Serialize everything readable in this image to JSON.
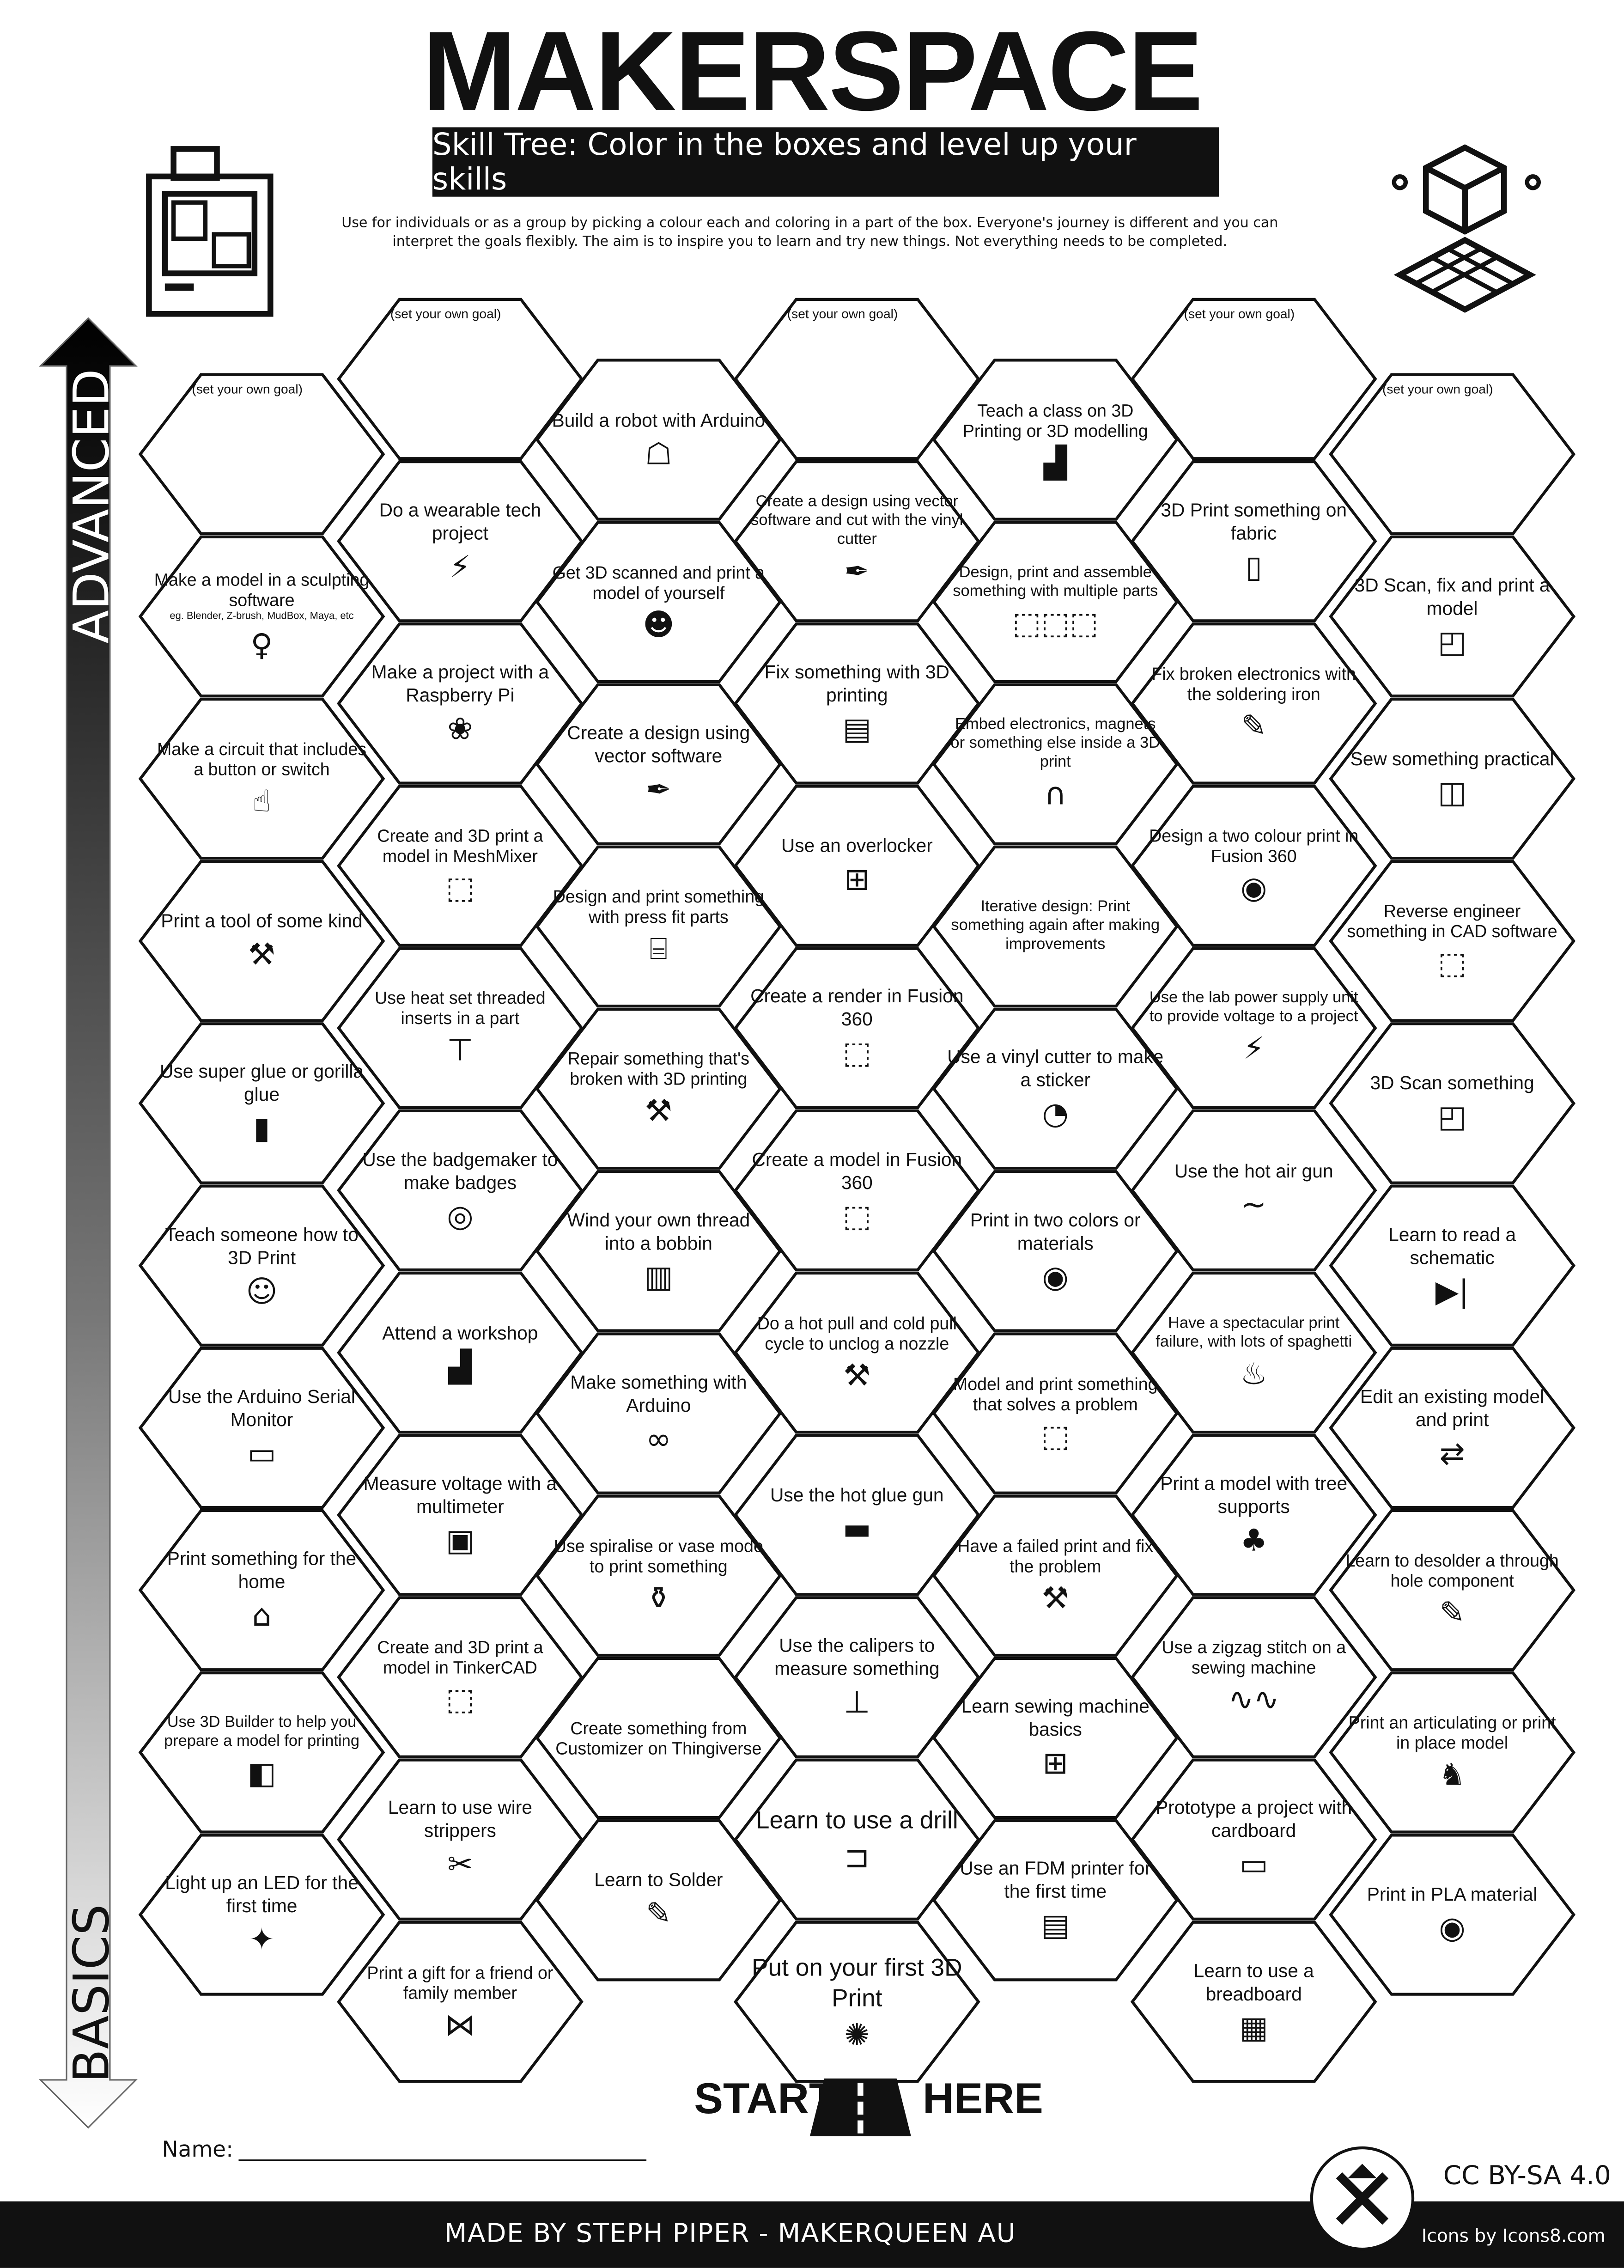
{
  "header": {
    "title": "MAKERSPACE",
    "subtitle": "Skill Tree:  Color in the boxes and level up your skills",
    "intro": "Use for individuals or as a group by picking a colour each and coloring in a part of the box.  Everyone's journey is different and you can interpret the goals flexibly.  The aim is to inspire you to learn and try new things. Not everything needs to be completed."
  },
  "arrow": {
    "top_label": "ADVANCED",
    "bottom_label": "BASICS"
  },
  "columns": [
    [
      {
        "goal": "(set your own goal)"
      },
      {
        "text": "Make a model in a sculpting software",
        "sub": "eg. Blender, Z-brush, MudBox, Maya, etc",
        "icon": "sculpture-icon"
      },
      {
        "text": "Make a circuit that includes a button or switch",
        "icon": "finger-press-icon"
      },
      {
        "text": "Print a tool of some kind",
        "icon": "tools-icon"
      },
      {
        "text": "Use super glue or gorilla glue",
        "icon": "glue-icon"
      },
      {
        "text": "Teach someone how to 3D Print",
        "icon": "teaching-icon"
      },
      {
        "text": "Use the Arduino Serial Monitor",
        "icon": "serial-monitor-icon"
      },
      {
        "text": "Print something for the home",
        "icon": "home-icon"
      },
      {
        "text": "Use 3D Builder to help you prepare a model for printing",
        "icon": "3d-builder-icon"
      },
      {
        "text": "Light up an LED for the first time",
        "icon": "led-party-icon"
      }
    ],
    [
      {
        "goal": "(set your own goal)"
      },
      {
        "text": "Do a wearable tech project",
        "icon": "led-lightning-icon"
      },
      {
        "text": "Make a project with a Raspberry Pi",
        "icon": "raspberry-pi-icon"
      },
      {
        "text": "Create and 3D print a model in MeshMixer",
        "icon": "cube-icon"
      },
      {
        "text": "Use heat set threaded inserts in a part",
        "icon": "screw-icon"
      },
      {
        "text": "Use the badgemaker to make badges",
        "icon": "badge-icon"
      },
      {
        "text": "Attend a workshop",
        "icon": "presentation-icon"
      },
      {
        "text": "Measure voltage with a multimeter",
        "icon": "multimeter-icon"
      },
      {
        "text": "Create and 3D print a model in TinkerCAD",
        "icon": "cube-icon"
      },
      {
        "text": "Learn to use wire strippers",
        "icon": "wire-stripper-icon"
      },
      {
        "text": "Print a gift for a friend or family member",
        "icon": "bow-icon"
      }
    ],
    [
      {
        "text": "Build a robot with Arduino",
        "icon": "robot-icon"
      },
      {
        "text": "Get 3D scanned and print a model of yourself",
        "icon": "scanned-person-icon"
      },
      {
        "text": "Create a design  using vector software",
        "icon": "pen-tool-icon"
      },
      {
        "text": "Design and print something with press fit parts",
        "icon": "cylinder-icon"
      },
      {
        "text": "Repair something that's broken with 3D printing",
        "icon": "tools-icon"
      },
      {
        "text": "Wind your own thread into a bobbin",
        "icon": "spool-icon"
      },
      {
        "text": "Make something with Arduino",
        "icon": "arduino-icon"
      },
      {
        "text": "Use spiralise or vase mode to print something",
        "icon": "vase-icon"
      },
      {
        "text": "Create something from Customizer on Thingiverse"
      },
      {
        "text": "Learn to Solder",
        "icon": "soldering-iron-icon"
      }
    ],
    [
      {
        "goal": "(set your own goal)"
      },
      {
        "text": "Create a  design using vector software and cut with the vinyl cutter",
        "icon": "pen-tool-icon"
      },
      {
        "text": "Fix something with 3D printing",
        "icon": "3d-printer-icon"
      },
      {
        "text": "Use an overlocker",
        "icon": "sewing-machine-icon"
      },
      {
        "text": "Create a render in Fusion 360",
        "icon": "cube-icon"
      },
      {
        "text": "Create a model in Fusion 360",
        "icon": "cube-icon"
      },
      {
        "text": "Do a hot pull and cold pull cycle to unclog a nozzle",
        "icon": "tools-icon"
      },
      {
        "text": "Use the hot glue gun",
        "icon": "glue-gun-icon"
      },
      {
        "text": "Use the calipers to measure something",
        "icon": "calipers-icon"
      },
      {
        "text": "Learn to use a drill",
        "icon": "drill-icon",
        "big": true
      },
      {
        "text": "Put on your first 3D Print",
        "icon": "party-popper-icon",
        "big": true
      }
    ],
    [
      {
        "text": "Teach a class on 3D Printing or 3D modelling",
        "icon": "presentation-icon"
      },
      {
        "text": "Design, print and assemble something with multiple parts",
        "icon": "cubes-icon"
      },
      {
        "text": "Embed electronics, magnets or something else inside a 3D print",
        "icon": "magnet-icon"
      },
      {
        "text": "Iterative design: Print something again after making improvements"
      },
      {
        "text": "Use a vinyl cutter to make a sticker",
        "icon": "sticker-icon"
      },
      {
        "text": "Print in two colors or materials",
        "icon": "filament-icon"
      },
      {
        "text": "Model and print something that solves a problem",
        "icon": "cube-icon"
      },
      {
        "text": "Have a failed print and fix the problem",
        "icon": "tools-icon"
      },
      {
        "text": "Learn sewing machine basics",
        "icon": "sewing-machine-icon"
      },
      {
        "text": "Use an FDM printer for the first time",
        "icon": "3d-printer-icon"
      }
    ],
    [
      {
        "goal": "(set your own goal)"
      },
      {
        "text": "3D Print something on fabric",
        "icon": "fabric-icon"
      },
      {
        "text": "Fix broken electronics with the soldering iron",
        "icon": "soldering-iron-icon"
      },
      {
        "text": "Design a two colour print in Fusion 360",
        "icon": "filament-icon"
      },
      {
        "text": "Use the lab power supply unit to provide voltage to a project",
        "icon": "lightning-icon"
      },
      {
        "text": "Use the hot air gun",
        "icon": "hot-air-gun-icon"
      },
      {
        "text": "Have a spectacular print failure, with lots of spaghetti",
        "icon": "spaghetti-icon"
      },
      {
        "text": "Print a model with tree supports",
        "icon": "tree-icon"
      },
      {
        "text": "Use a zigzag stitch on a sewing machine",
        "icon": "zigzag-icon"
      },
      {
        "text": "Prototype a project with cardboard",
        "icon": "cardboard-icon"
      },
      {
        "text": "Learn to use a breadboard",
        "icon": "breadboard-icon"
      }
    ],
    [
      {
        "goal": "(set your own goal)"
      },
      {
        "text": "3D Scan, fix and print a model",
        "icon": "3d-scan-icon"
      },
      {
        "text": "Sew something practical",
        "icon": "bag-icon"
      },
      {
        "text": "Reverse engineer something in CAD software",
        "icon": "cube-icon"
      },
      {
        "text": "3D Scan something",
        "icon": "3d-scan-icon"
      },
      {
        "text": "Learn to read a schematic",
        "icon": "diode-icon"
      },
      {
        "text": "Edit an existing model and print",
        "icon": "swap-icon"
      },
      {
        "text": "Learn to desolder a through hole component",
        "icon": "soldering-iron-icon"
      },
      {
        "text": "Print an articulating or print in place model",
        "icon": "dragon-icon"
      },
      {
        "text": "Print in PLA material",
        "icon": "filament-icon"
      }
    ]
  ],
  "start": {
    "left": "START",
    "right": "HERE"
  },
  "name_label": "Name:",
  "license": "CC BY-SA 4.0",
  "footer": {
    "made_by": "MADE BY STEPH PIPER  -  MAKERQUEEN AU",
    "icons_credit": "Icons by Icons8.com"
  },
  "colors": {
    "ink": "#111111",
    "paper": "#ffffff"
  }
}
